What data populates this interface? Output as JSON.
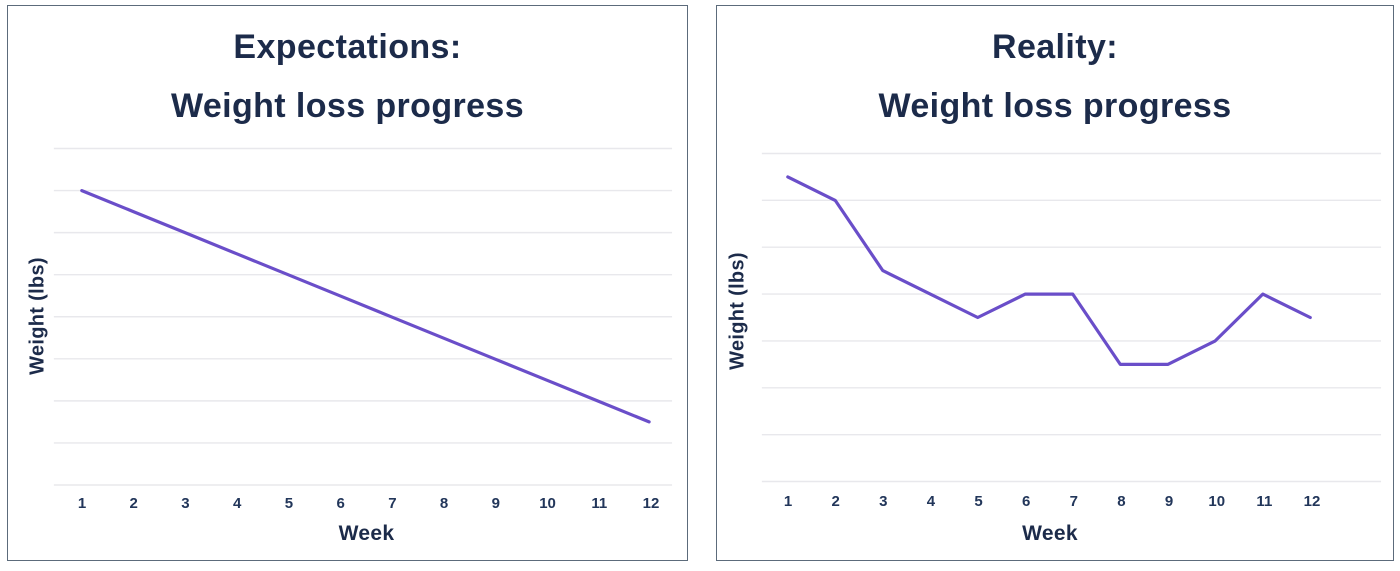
{
  "chart_data": [
    {
      "type": "line",
      "panel": "left",
      "title": "Expectations: Weight loss progress",
      "title_lines": [
        "Expectations:",
        "Weight loss progress"
      ],
      "xlabel": "Week",
      "ylabel": "Weight (lbs)",
      "categories": [
        "1",
        "2",
        "3",
        "4",
        "5",
        "6",
        "7",
        "8",
        "9",
        "10",
        "11",
        "12"
      ],
      "values": [
        7.0,
        6.5,
        6.0,
        5.5,
        5.0,
        4.5,
        4.0,
        3.5,
        3.0,
        2.5,
        2.0,
        1.5
      ],
      "y_units": "relative-gridline-units (no y tick labels shown)",
      "ylim": [
        0,
        8
      ],
      "gridline_count": 9,
      "grid": "horizontal",
      "legend": "none",
      "line_color": "#6a4ec9"
    },
    {
      "type": "line",
      "panel": "right",
      "title": "Reality: Weight loss progress",
      "title_lines": [
        "Reality:",
        "Weight loss progress"
      ],
      "xlabel": "Week",
      "ylabel": "Weight (lbs)",
      "categories": [
        "1",
        "2",
        "3",
        "4",
        "5",
        "6",
        "7",
        "8",
        "9",
        "10",
        "11",
        "12"
      ],
      "values": [
        6.5,
        6.0,
        4.5,
        4.0,
        3.5,
        4.0,
        4.0,
        2.5,
        2.5,
        3.0,
        4.0,
        3.5
      ],
      "y_units": "relative-gridline-units (no y tick labels shown)",
      "ylim": [
        0,
        7
      ],
      "gridline_count": 8,
      "grid": "horizontal",
      "legend": "none",
      "line_color": "#6a4ec9"
    }
  ],
  "colors": {
    "line": "#6a4ec9",
    "title_text": "#1c2b4a",
    "tick_text": "#22365a",
    "gridline": "#e8e8ec",
    "panel_border": "#5c6b7b",
    "background": "#ffffff"
  }
}
